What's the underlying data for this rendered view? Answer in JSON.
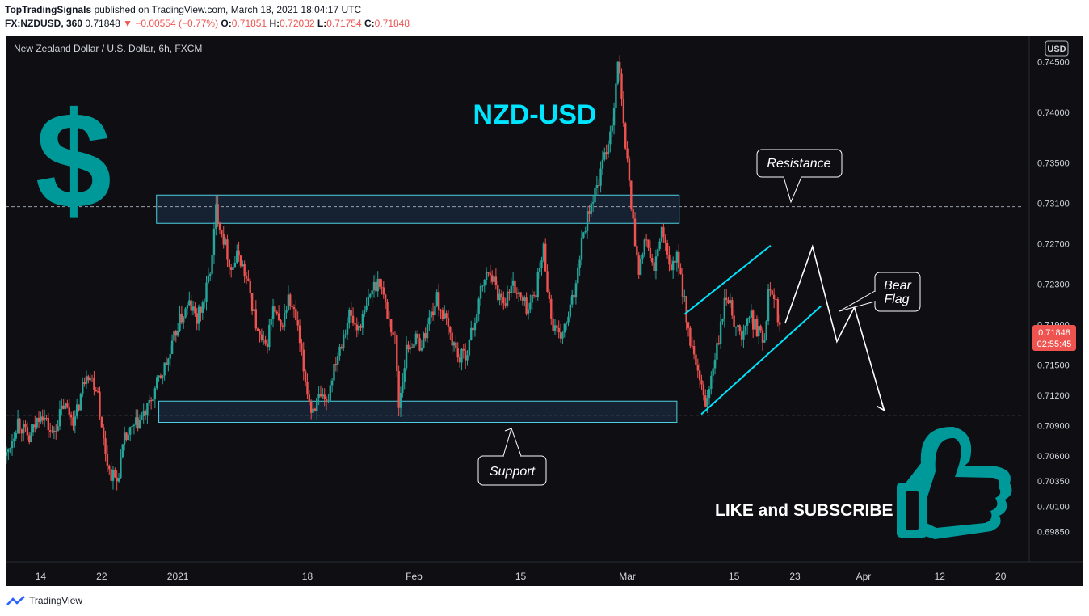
{
  "header": {
    "author": "TopTradingSignals",
    "published_text": "published on TradingView.com, March 18, 2021 18:04:17 UTC",
    "symbol": "FX:NZDUSD, 360",
    "last": "0.71848",
    "change": "▼ −0.00554 (−0.77%)",
    "o_label": "O:",
    "o": "0.71851",
    "h_label": "H:",
    "h": "0.72032",
    "l_label": "L:",
    "l": "0.71754",
    "c_label": "C:",
    "c": "0.71848"
  },
  "chart_title": "New Zealand Dollar / U.S. Dollar, 6h, FXCM",
  "currency_badge": "USD",
  "price_tag": {
    "price": "0.71848",
    "countdown": "02:55:45"
  },
  "annotations": {
    "big_title": "NZD-USD",
    "resistance": "Resistance",
    "support": "Support",
    "bear_flag_line1": "Bear",
    "bear_flag_line2": "Flag",
    "cta": "LIKE and SUBSCRIBE",
    "dollar_sign": "$"
  },
  "footer": {
    "brand": "TradingView"
  },
  "colors": {
    "background": "#0e0e13",
    "up_candle": "#26a69a",
    "down_candle": "#ef5350",
    "zone_border": "#4dd0e1",
    "channel": "#00e5ff",
    "teal_graphic": "#009999",
    "title_cyan": "#00e5ff"
  },
  "chart_data": {
    "type": "candlestick",
    "title": "New Zealand Dollar / U.S. Dollar, 6h, FXCM",
    "y_ticks": [
      "0.74500",
      "0.74000",
      "0.73500",
      "0.73100",
      "0.72700",
      "0.72300",
      "0.71900",
      "0.71500",
      "0.71200",
      "0.70900",
      "0.70600",
      "0.70350",
      "0.70100",
      "0.69850"
    ],
    "y_tick_values": [
      0.745,
      0.74,
      0.735,
      0.731,
      0.727,
      0.723,
      0.719,
      0.715,
      0.712,
      0.709,
      0.706,
      0.7035,
      0.701,
      0.6985
    ],
    "ylim": [
      0.6955,
      0.7475
    ],
    "x_ticks": [
      "14",
      "22",
      "2021",
      "18",
      "Feb",
      "15",
      "Mar",
      "15",
      "23",
      "Apr",
      "12",
      "20"
    ],
    "x_tick_days": [
      0,
      8,
      18,
      35,
      49,
      63,
      77,
      91,
      99,
      108,
      118,
      126
    ],
    "x_domain_days": [
      -4.6,
      129
    ],
    "last_price": 0.71848,
    "series_points": [
      {
        "d": -4.5,
        "v": 0.706
      },
      {
        "d": -3,
        "v": 0.7095
      },
      {
        "d": -1.5,
        "v": 0.7075
      },
      {
        "d": 0,
        "v": 0.7105
      },
      {
        "d": 1.5,
        "v": 0.708
      },
      {
        "d": 3,
        "v": 0.711
      },
      {
        "d": 4.5,
        "v": 0.7095
      },
      {
        "d": 6,
        "v": 0.7145
      },
      {
        "d": 7.5,
        "v": 0.7125
      },
      {
        "d": 8,
        "v": 0.7085
      },
      {
        "d": 9,
        "v": 0.7045
      },
      {
        "d": 10,
        "v": 0.7035
      },
      {
        "d": 11,
        "v": 0.7075
      },
      {
        "d": 12.5,
        "v": 0.709
      },
      {
        "d": 14,
        "v": 0.7105
      },
      {
        "d": 15.5,
        "v": 0.7135
      },
      {
        "d": 17,
        "v": 0.716
      },
      {
        "d": 18,
        "v": 0.719
      },
      {
        "d": 19.5,
        "v": 0.721
      },
      {
        "d": 20.5,
        "v": 0.7195
      },
      {
        "d": 21.5,
        "v": 0.7215
      },
      {
        "d": 22.5,
        "v": 0.7255
      },
      {
        "d": 23,
        "v": 0.7305
      },
      {
        "d": 24,
        "v": 0.7275
      },
      {
        "d": 25,
        "v": 0.7245
      },
      {
        "d": 26,
        "v": 0.726
      },
      {
        "d": 27.5,
        "v": 0.722
      },
      {
        "d": 28.5,
        "v": 0.718
      },
      {
        "d": 29.5,
        "v": 0.7165
      },
      {
        "d": 30.5,
        "v": 0.7205
      },
      {
        "d": 31.5,
        "v": 0.7185
      },
      {
        "d": 32.5,
        "v": 0.7215
      },
      {
        "d": 33.5,
        "v": 0.7195
      },
      {
        "d": 34.5,
        "v": 0.7145
      },
      {
        "d": 35.5,
        "v": 0.7105
      },
      {
        "d": 36.5,
        "v": 0.7115
      },
      {
        "d": 37.5,
        "v": 0.711
      },
      {
        "d": 38.5,
        "v": 0.715
      },
      {
        "d": 39.5,
        "v": 0.7175
      },
      {
        "d": 40.5,
        "v": 0.72
      },
      {
        "d": 41.5,
        "v": 0.7185
      },
      {
        "d": 42.5,
        "v": 0.72
      },
      {
        "d": 43.5,
        "v": 0.7225
      },
      {
        "d": 44.5,
        "v": 0.7235
      },
      {
        "d": 45.5,
        "v": 0.72
      },
      {
        "d": 46.5,
        "v": 0.7175
      },
      {
        "d": 47,
        "v": 0.711
      },
      {
        "d": 48,
        "v": 0.7165
      },
      {
        "d": 49,
        "v": 0.7175
      },
      {
        "d": 50,
        "v": 0.717
      },
      {
        "d": 51,
        "v": 0.7195
      },
      {
        "d": 52,
        "v": 0.7215
      },
      {
        "d": 53,
        "v": 0.7195
      },
      {
        "d": 54,
        "v": 0.7175
      },
      {
        "d": 55,
        "v": 0.7155
      },
      {
        "d": 56,
        "v": 0.7165
      },
      {
        "d": 57,
        "v": 0.7195
      },
      {
        "d": 58,
        "v": 0.723
      },
      {
        "d": 59,
        "v": 0.7245
      },
      {
        "d": 60,
        "v": 0.722
      },
      {
        "d": 61,
        "v": 0.7215
      },
      {
        "d": 62,
        "v": 0.723
      },
      {
        "d": 63,
        "v": 0.7215
      },
      {
        "d": 64,
        "v": 0.7205
      },
      {
        "d": 65,
        "v": 0.7225
      },
      {
        "d": 66,
        "v": 0.7265
      },
      {
        "d": 67,
        "v": 0.7195
      },
      {
        "d": 68,
        "v": 0.7175
      },
      {
        "d": 69,
        "v": 0.719
      },
      {
        "d": 70,
        "v": 0.722
      },
      {
        "d": 71,
        "v": 0.7275
      },
      {
        "d": 72,
        "v": 0.7305
      },
      {
        "d": 73,
        "v": 0.7325
      },
      {
        "d": 74,
        "v": 0.7355
      },
      {
        "d": 75,
        "v": 0.739
      },
      {
        "d": 75.8,
        "v": 0.7455
      },
      {
        "d": 76.5,
        "v": 0.7385
      },
      {
        "d": 77.2,
        "v": 0.7335
      },
      {
        "d": 77.8,
        "v": 0.7285
      },
      {
        "d": 78.5,
        "v": 0.7245
      },
      {
        "d": 79.5,
        "v": 0.7275
      },
      {
        "d": 80.5,
        "v": 0.724
      },
      {
        "d": 81.5,
        "v": 0.7285
      },
      {
        "d": 82.5,
        "v": 0.7245
      },
      {
        "d": 83.5,
        "v": 0.7255
      },
      {
        "d": 84.5,
        "v": 0.7215
      },
      {
        "d": 85,
        "v": 0.718
      },
      {
        "d": 85.8,
        "v": 0.7155
      },
      {
        "d": 86.5,
        "v": 0.713
      },
      {
        "d": 87.3,
        "v": 0.711
      },
      {
        "d": 88.2,
        "v": 0.7145
      },
      {
        "d": 89,
        "v": 0.7175
      },
      {
        "d": 90,
        "v": 0.722
      },
      {
        "d": 91,
        "v": 0.7195
      },
      {
        "d": 92,
        "v": 0.7175
      },
      {
        "d": 93,
        "v": 0.72
      },
      {
        "d": 94,
        "v": 0.7185
      },
      {
        "d": 95,
        "v": 0.7175
      },
      {
        "d": 95.6,
        "v": 0.7235
      },
      {
        "d": 96.4,
        "v": 0.7215
      },
      {
        "d": 97,
        "v": 0.7185
      }
    ],
    "zones": [
      {
        "label": "Resistance",
        "y_low": 0.729,
        "y_high": 0.7318,
        "d_start": 15.2,
        "d_end": 83.8
      },
      {
        "label": "Support",
        "y_low": 0.7093,
        "y_high": 0.7114,
        "d_start": 15.5,
        "d_end": 83.5
      }
    ],
    "dashed_levels": [
      0.73065,
      0.70995
    ],
    "channel_lines": [
      {
        "d1": 84.5,
        "v1": 0.72,
        "d2": 95.8,
        "v2": 0.7268
      },
      {
        "d1": 86.7,
        "v1": 0.7101,
        "d2": 102.4,
        "v2": 0.7208
      }
    ],
    "projection_path": [
      {
        "d": 97.7,
        "v": 0.7191
      },
      {
        "d": 101.3,
        "v": 0.7267
      },
      {
        "d": 104.5,
        "v": 0.7173
      },
      {
        "d": 106.8,
        "v": 0.7207
      },
      {
        "d": 110.7,
        "v": 0.7105
      }
    ]
  }
}
